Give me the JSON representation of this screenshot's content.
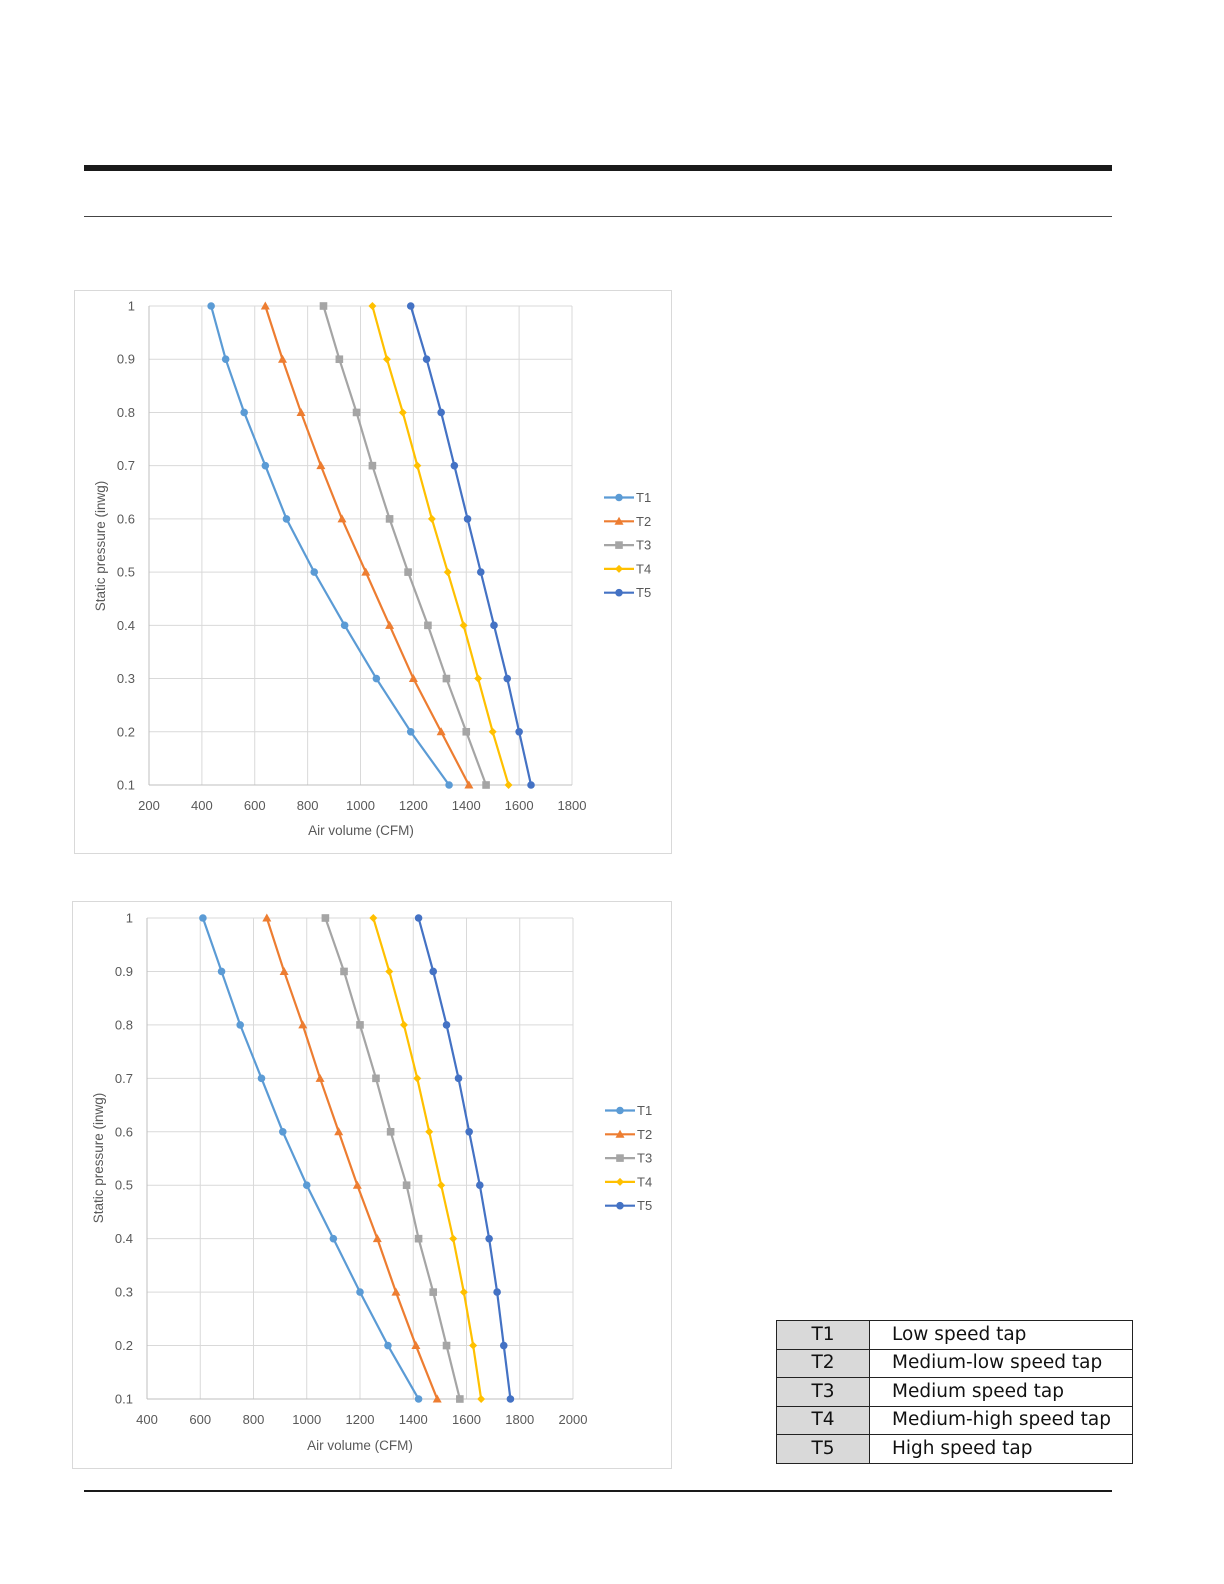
{
  "charts": [
    {
      "id": "chart1",
      "xlabel": "Air volume (CFM)",
      "ylabel": "Static pressure (inwg)"
    },
    {
      "id": "chart2",
      "xlabel": "Air volume (CFM)",
      "ylabel": "Static pressure (inwg)"
    }
  ],
  "speed_taps": [
    {
      "code": "T1",
      "description": "Low speed tap"
    },
    {
      "code": "T2",
      "description": "Medium-low speed tap"
    },
    {
      "code": "T3",
      "description": "Medium speed tap"
    },
    {
      "code": "T4",
      "description": "Medium-high speed tap"
    },
    {
      "code": "T5",
      "description": "High speed tap"
    }
  ],
  "chart_data": [
    {
      "type": "line",
      "xlabel": "Air volume (CFM)",
      "ylabel": "Static pressure (inwg)",
      "xlim": [
        200,
        1800
      ],
      "ylim": [
        0.1,
        1
      ],
      "xticks": [
        200,
        400,
        600,
        800,
        1000,
        1200,
        1400,
        1600,
        1800
      ],
      "yticks": [
        0.1,
        0.2,
        0.3,
        0.4,
        0.5,
        0.6,
        0.7,
        0.8,
        0.9,
        1
      ],
      "grid": true,
      "legend": "right",
      "y": [
        1,
        0.9,
        0.8,
        0.7,
        0.6,
        0.5,
        0.4,
        0.3,
        0.2,
        0.1
      ],
      "series": [
        {
          "name": "T1",
          "color": "#5b9bd5",
          "marker": "circle",
          "x": [
            435,
            490,
            560,
            640,
            720,
            825,
            940,
            1060,
            1190,
            1335
          ]
        },
        {
          "name": "T2",
          "color": "#ed7d31",
          "marker": "triangle",
          "x": [
            640,
            705,
            775,
            850,
            930,
            1020,
            1110,
            1200,
            1305,
            1410
          ]
        },
        {
          "name": "T3",
          "color": "#a5a5a5",
          "marker": "square",
          "x": [
            860,
            920,
            985,
            1045,
            1110,
            1180,
            1255,
            1325,
            1400,
            1475
          ]
        },
        {
          "name": "T4",
          "color": "#ffc000",
          "marker": "diamond",
          "x": [
            1045,
            1100,
            1160,
            1215,
            1270,
            1330,
            1390,
            1445,
            1500,
            1560
          ]
        },
        {
          "name": "T5",
          "color": "#4472c4",
          "marker": "circle",
          "x": [
            1190,
            1250,
            1305,
            1355,
            1405,
            1455,
            1505,
            1555,
            1600,
            1645
          ]
        }
      ]
    },
    {
      "type": "line",
      "xlabel": "Air volume (CFM)",
      "ylabel": "Static pressure (inwg)",
      "xlim": [
        400,
        2000
      ],
      "ylim": [
        0.1,
        1
      ],
      "xticks": [
        400,
        600,
        800,
        1000,
        1200,
        1400,
        1600,
        1800,
        2000
      ],
      "yticks": [
        0.1,
        0.2,
        0.3,
        0.4,
        0.5,
        0.6,
        0.7,
        0.8,
        0.9,
        1
      ],
      "grid": true,
      "legend": "right",
      "y": [
        1,
        0.9,
        0.8,
        0.7,
        0.6,
        0.5,
        0.4,
        0.3,
        0.2,
        0.1
      ],
      "series": [
        {
          "name": "T1",
          "color": "#5b9bd5",
          "marker": "circle",
          "x": [
            610,
            680,
            750,
            830,
            910,
            1000,
            1100,
            1200,
            1305,
            1420
          ]
        },
        {
          "name": "T2",
          "color": "#ed7d31",
          "marker": "triangle",
          "x": [
            850,
            915,
            985,
            1050,
            1120,
            1190,
            1265,
            1335,
            1410,
            1490
          ]
        },
        {
          "name": "T3",
          "color": "#a5a5a5",
          "marker": "square",
          "x": [
            1070,
            1140,
            1200,
            1260,
            1315,
            1375,
            1420,
            1475,
            1525,
            1575
          ]
        },
        {
          "name": "T4",
          "color": "#ffc000",
          "marker": "diamond",
          "x": [
            1250,
            1310,
            1365,
            1415,
            1460,
            1505,
            1550,
            1590,
            1625,
            1655
          ]
        },
        {
          "name": "T5",
          "color": "#4472c4",
          "marker": "circle",
          "x": [
            1420,
            1475,
            1525,
            1570,
            1610,
            1650,
            1685,
            1715,
            1740,
            1765
          ]
        }
      ]
    }
  ]
}
